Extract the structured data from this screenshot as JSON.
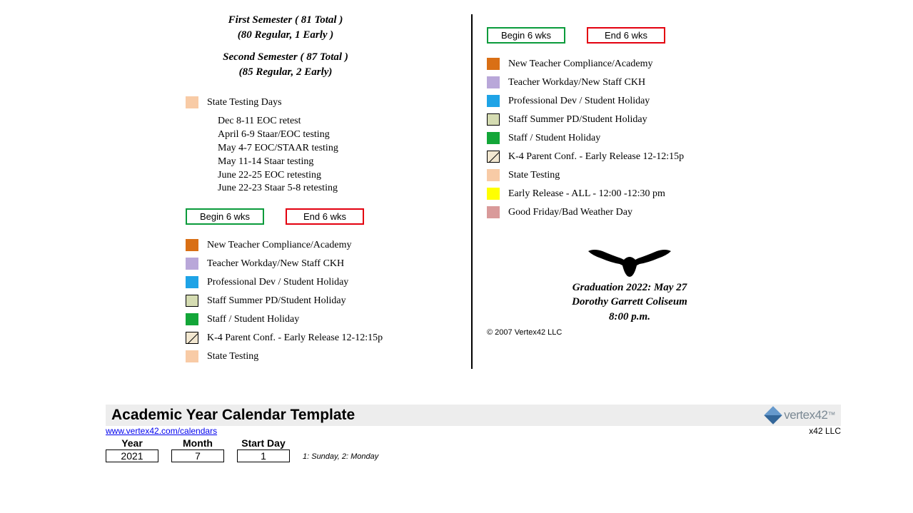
{
  "semesters": {
    "first_total": "First Semester ( 81 Total )",
    "first_detail": "(80 Regular, 1 Early )",
    "second_total": "Second Semester ( 87 Total )",
    "second_detail": "(85 Regular, 2 Early)"
  },
  "testing": {
    "header": "State Testing Days",
    "lines": [
      "Dec 8-11  EOC retest",
      "April 6-9  Staar/EOC testing",
      "May 4-7  EOC/STAAR testing",
      "May 11-14  Staar testing",
      "June 22-25  EOC retesting",
      "June 22-23  Staar 5-8 retesting"
    ]
  },
  "pills": {
    "begin": "Begin 6 wks",
    "end": "End 6 wks"
  },
  "legend": [
    {
      "color": "#d96f15",
      "label": "New Teacher Compliance/Academy",
      "border": false
    },
    {
      "color": "#b9a7d9",
      "label": "Teacher Workday/New Staff CKH",
      "border": false
    },
    {
      "color": "#1ea3e6",
      "label": "Professional Dev / Student Holiday",
      "border": false
    },
    {
      "color": "#d5dcb2",
      "label": "Staff Summer PD/Student Holiday",
      "border": true
    },
    {
      "color": "#13a638",
      "label": "Staff / Student Holiday",
      "border": false
    },
    {
      "color": "diagonal",
      "label": "K-4 Parent Conf. - Early Release 12-12:15p",
      "border": true
    },
    {
      "color": "#f8cba6",
      "label": "State Testing",
      "border": false
    }
  ],
  "legend_extra": [
    {
      "color": "#ffff00",
      "label": "Early Release - ALL - 12:00 -12:30 pm",
      "border": false
    },
    {
      "color": "#d99a9a",
      "label": "Good Friday/Bad Weather Day",
      "border": false
    }
  ],
  "testing_swatch_color": "#f8cba6",
  "graduation": {
    "line1": "Graduation 2022: May 27",
    "line2": "Dorothy Garrett Coliseum",
    "line3": "8:00 p.m."
  },
  "copyright": "© 2007 Vertex42 LLC",
  "template": {
    "title": "Academic Year Calendar Template",
    "logo_text": "vertex42",
    "url": "www.vertex42.com/calendars",
    "right_text": "x42 LLC"
  },
  "params": {
    "year_label": "Year",
    "year_value": "2021",
    "month_label": "Month",
    "month_value": "7",
    "startday_label": "Start Day",
    "startday_value": "1",
    "note": "1: Sunday, 2: Monday"
  },
  "colors": {
    "green_border": "#0a9b3b",
    "red_border": "#e3000f"
  }
}
